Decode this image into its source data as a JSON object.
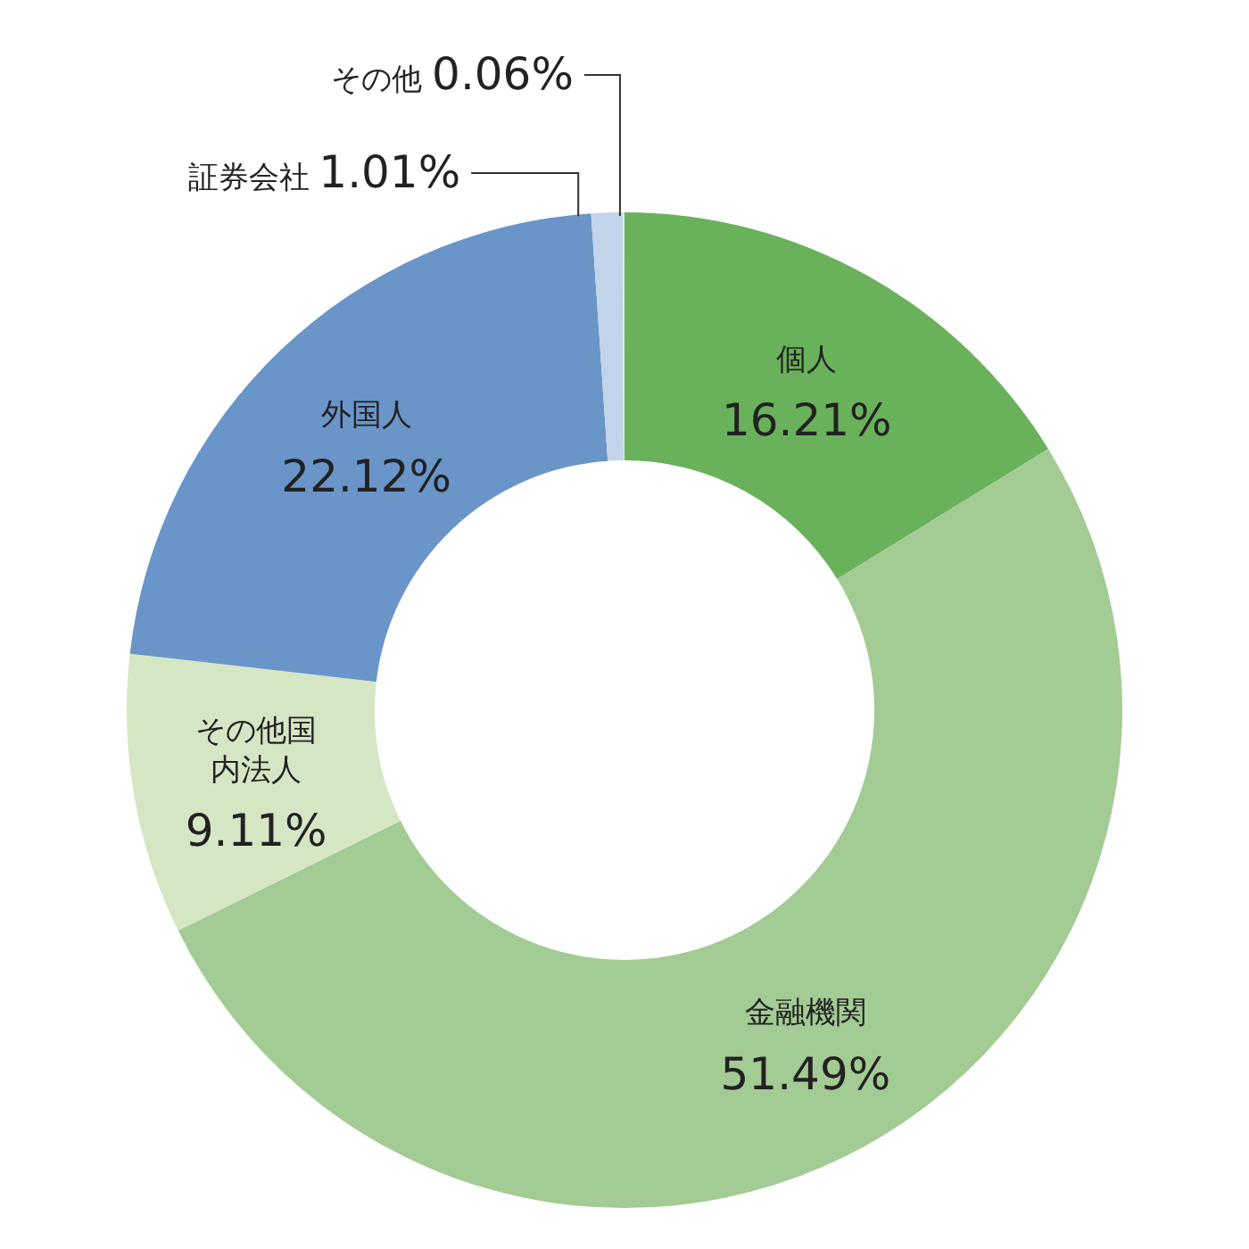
{
  "chart_data": {
    "type": "donut",
    "categories": [
      "個人",
      "金融機関",
      "その他国内法人",
      "外国人",
      "証券会社",
      "その他"
    ],
    "values": [
      16.21,
      51.49,
      9.11,
      22.12,
      1.01,
      0.06
    ],
    "colors": [
      "#69b25b",
      "#a3cb94",
      "#d5e6c4",
      "#6a95c8",
      "#c1d4ea",
      "#dfe8f4"
    ],
    "value_labels": [
      "16.21%",
      "51.49%",
      "9.11%",
      "22.12%",
      "1.01%",
      "0.06%"
    ]
  }
}
